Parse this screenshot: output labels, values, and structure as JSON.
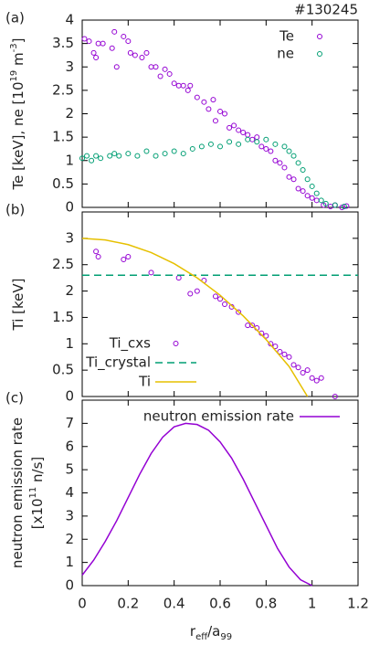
{
  "chart_data": [
    {
      "type": "scatter",
      "panel_label": "(a)",
      "annotation": "#130245",
      "ylabel": [
        [
          "Te [keV], ne [10",
          "19",
          " m",
          "-3",
          "]"
        ]
      ],
      "xlim": [
        0,
        1.2
      ],
      "ylim": [
        0,
        4
      ],
      "yticks": [
        0,
        0.5,
        1,
        1.5,
        2,
        2.5,
        3,
        3.5,
        4
      ],
      "legend": "upper right",
      "series": [
        {
          "name": "Te",
          "color": "#9400d3",
          "mark": "circle",
          "x": [
            0.01,
            0.03,
            0.05,
            0.06,
            0.07,
            0.09,
            0.13,
            0.14,
            0.15,
            0.18,
            0.2,
            0.21,
            0.23,
            0.26,
            0.28,
            0.3,
            0.32,
            0.34,
            0.36,
            0.38,
            0.4,
            0.42,
            0.44,
            0.46,
            0.47,
            0.5,
            0.53,
            0.55,
            0.57,
            0.58,
            0.6,
            0.62,
            0.64,
            0.66,
            0.68,
            0.7,
            0.72,
            0.74,
            0.76,
            0.78,
            0.8,
            0.82,
            0.84,
            0.86,
            0.88,
            0.9,
            0.92,
            0.94,
            0.96,
            0.98,
            1.0,
            1.02,
            1.05,
            1.08,
            1.1,
            1.13,
            1.15
          ],
          "values": [
            3.6,
            3.55,
            3.3,
            3.2,
            3.5,
            3.5,
            3.4,
            3.75,
            3.0,
            3.65,
            3.55,
            3.3,
            3.25,
            3.2,
            3.3,
            3.0,
            3.0,
            2.8,
            2.95,
            2.85,
            2.65,
            2.6,
            2.6,
            2.5,
            2.6,
            2.35,
            2.25,
            2.1,
            2.3,
            1.85,
            2.05,
            2.0,
            1.7,
            1.75,
            1.65,
            1.6,
            1.55,
            1.45,
            1.5,
            1.3,
            1.25,
            1.2,
            1.0,
            0.95,
            0.85,
            0.65,
            0.6,
            0.4,
            0.35,
            0.25,
            0.2,
            0.15,
            0.05,
            0.02,
            0.05,
            0.0,
            0.03
          ]
        },
        {
          "name": "ne",
          "color": "#009e73",
          "mark": "circle",
          "x": [
            0.0,
            0.02,
            0.04,
            0.06,
            0.08,
            0.12,
            0.14,
            0.16,
            0.2,
            0.24,
            0.28,
            0.32,
            0.36,
            0.4,
            0.44,
            0.48,
            0.52,
            0.56,
            0.6,
            0.64,
            0.68,
            0.72,
            0.76,
            0.8,
            0.84,
            0.88,
            0.9,
            0.92,
            0.94,
            0.96,
            0.98,
            1.0,
            1.02,
            1.04,
            1.06,
            1.1,
            1.14
          ],
          "values": [
            1.05,
            1.1,
            1.0,
            1.1,
            1.05,
            1.1,
            1.15,
            1.1,
            1.15,
            1.1,
            1.2,
            1.1,
            1.15,
            1.2,
            1.15,
            1.25,
            1.3,
            1.35,
            1.3,
            1.4,
            1.35,
            1.45,
            1.4,
            1.45,
            1.35,
            1.3,
            1.2,
            1.1,
            0.95,
            0.8,
            0.6,
            0.45,
            0.3,
            0.15,
            0.08,
            0.05,
            0.02
          ]
        }
      ]
    },
    {
      "type": "scatter",
      "panel_label": "(b)",
      "ylabel": [
        [
          "Ti [keV]"
        ]
      ],
      "xlim": [
        0,
        1.2
      ],
      "ylim": [
        0,
        3.5
      ],
      "yticks": [
        0,
        0.5,
        1,
        1.5,
        2,
        2.5,
        3
      ],
      "legend": "center left",
      "series": [
        {
          "name": "Ti_cxs",
          "color": "#9400d3",
          "mark": "circle",
          "x": [
            0.06,
            0.07,
            0.18,
            0.2,
            0.3,
            0.42,
            0.47,
            0.5,
            0.53,
            0.58,
            0.6,
            0.62,
            0.65,
            0.68,
            0.72,
            0.74,
            0.76,
            0.78,
            0.8,
            0.82,
            0.84,
            0.86,
            0.88,
            0.9,
            0.92,
            0.94,
            0.96,
            0.98,
            1.0,
            1.02,
            1.04,
            1.1
          ],
          "values": [
            2.75,
            2.65,
            2.6,
            2.65,
            2.35,
            2.25,
            1.95,
            2.0,
            2.2,
            1.9,
            1.85,
            1.75,
            1.7,
            1.6,
            1.35,
            1.35,
            1.3,
            1.2,
            1.15,
            1.0,
            0.95,
            0.85,
            0.8,
            0.75,
            0.6,
            0.55,
            0.45,
            0.5,
            0.35,
            0.3,
            0.35,
            0.0
          ]
        },
        {
          "name": "Ti_crystal",
          "color": "#009e73",
          "mark": "dashed",
          "x": [
            0,
            1.2
          ],
          "values": [
            2.3,
            2.3
          ]
        },
        {
          "name": "Ti",
          "color": "#e6c000",
          "mark": "line",
          "x": [
            0,
            0.1,
            0.2,
            0.3,
            0.4,
            0.5,
            0.6,
            0.7,
            0.8,
            0.9,
            0.98
          ],
          "values": [
            3.0,
            2.97,
            2.88,
            2.73,
            2.52,
            2.25,
            1.92,
            1.53,
            1.08,
            0.57,
            0.0
          ]
        }
      ]
    },
    {
      "type": "line",
      "panel_label": "(c)",
      "ylabel": [
        [
          "neutron emission rate"
        ],
        [
          "[x10",
          "11",
          " n/s]"
        ]
      ],
      "xlabel": [
        "r",
        "eff",
        "/a",
        "99"
      ],
      "xlim": [
        0,
        1.2
      ],
      "xticks": [
        0,
        0.2,
        0.4,
        0.6,
        0.8,
        1,
        1.2
      ],
      "ylim": [
        0,
        8
      ],
      "yticks": [
        0,
        1,
        2,
        3,
        4,
        5,
        6,
        7
      ],
      "legend": "upper right",
      "series": [
        {
          "name": "neutron emission rate",
          "color": "#9400d3",
          "mark": "line",
          "x": [
            0,
            0.05,
            0.1,
            0.15,
            0.2,
            0.25,
            0.3,
            0.35,
            0.4,
            0.45,
            0.5,
            0.55,
            0.6,
            0.65,
            0.7,
            0.75,
            0.8,
            0.85,
            0.9,
            0.95,
            1.0
          ],
          "values": [
            0.45,
            1.1,
            1.9,
            2.8,
            3.8,
            4.8,
            5.7,
            6.4,
            6.85,
            7.0,
            6.95,
            6.7,
            6.2,
            5.5,
            4.6,
            3.6,
            2.6,
            1.6,
            0.8,
            0.25,
            0.0
          ]
        }
      ]
    }
  ]
}
